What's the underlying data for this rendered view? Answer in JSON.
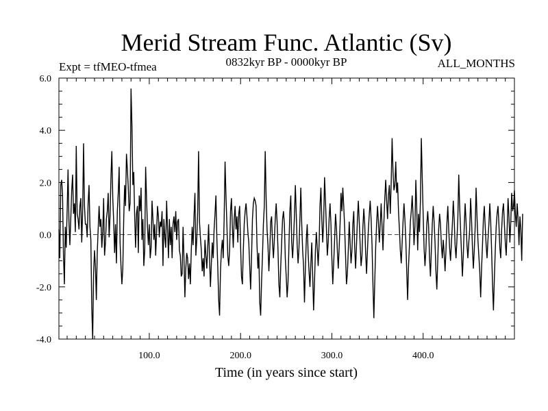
{
  "chart_data": {
    "type": "line",
    "title": "Merid Stream Func. Atlantic (Sv)",
    "subtitle_left": "Expt = tfMEO-tfmea",
    "subtitle_center": "0832kyr BP - 0000kyr BP",
    "subtitle_right": "ALL_MONTHS",
    "xlabel": "Time (in years since start)",
    "ylabel": "",
    "xlim": [
      1,
      500
    ],
    "ylim": [
      -4.0,
      6.0
    ],
    "xticks": [
      100,
      200,
      300,
      400
    ],
    "xtick_labels": [
      "100.0",
      "200.0",
      "300.0",
      "400.0"
    ],
    "yticks": [
      -4,
      -2,
      0,
      2,
      4,
      6
    ],
    "ytick_labels": [
      "-4.0",
      "-2.0",
      "0.0",
      "2.0",
      "4.0",
      "6.0"
    ],
    "reference_line": 0,
    "series": [
      {
        "name": "tfMEO-tfmea",
        "x_start": 1,
        "x_step": 1,
        "values": [
          0.2,
          -0.9,
          1.9,
          2.1,
          1.5,
          -0.8,
          -1.9,
          0.3,
          -0.5,
          0.9,
          2.5,
          0.5,
          -0.4,
          0.6,
          1.7,
          2.3,
          0.8,
          1.2,
          0.1,
          3.4,
          0.8,
          0.6,
          0.2,
          1.1,
          1.4,
          -0.3,
          0.9,
          3.5,
          1.1,
          0.4,
          0.4,
          -0.1,
          1.2,
          1.9,
          0.3,
          -0.2,
          -2.8,
          -4.0,
          -1.5,
          -0.6,
          -1.2,
          -2.5,
          -0.7,
          0.2,
          1.1,
          0.3,
          0.6,
          -0.5,
          0.1,
          1.4,
          -0.8,
          -0.3,
          0.6,
          0.9,
          1.6,
          -0.1,
          0.7,
          2.2,
          3.2,
          1.4,
          0.5,
          -0.7,
          0.4,
          -1.1,
          0.9,
          1.6,
          2.6,
          -0.3,
          -1.2,
          -1.9,
          -1.3,
          0.6,
          1.9,
          1.1,
          3.1,
          2.5,
          1.8,
          0.9,
          1.2,
          5.6,
          4.2,
          1.9,
          2.4,
          0.7,
          -0.5,
          0.8,
          1.1,
          -0.7,
          1.5,
          0.9,
          1.8,
          -0.2,
          0.6,
          -1.2,
          -0.6,
          2.6,
          1.4,
          0.3,
          -0.4,
          0.4,
          -0.9,
          -0.5,
          1.3,
          0.6,
          -0.2,
          0.4,
          -0.8,
          0.1,
          1.1,
          0.7,
          -0.1,
          0.5,
          0.3,
          0.9,
          -1.2,
          0.6,
          -0.1,
          -0.5,
          1.3,
          0.2,
          -0.9,
          0.6,
          -0.4,
          0.3,
          -0.9,
          0.4,
          0.7,
          0.1,
          0.9,
          -0.2,
          0.5,
          0.6,
          -0.6,
          -0.8,
          -1.6,
          -1.5,
          0.3,
          -0.9,
          -2.4,
          -1.3,
          -0.7,
          -0.9,
          -1.7,
          -1.1,
          -1.9,
          -0.6,
          0.3,
          -0.4,
          0.7,
          1.6,
          -0.8,
          -0.2,
          0.9,
          3.2,
          0.5,
          -0.1,
          -0.6,
          -1.4,
          -0.9,
          -1.6,
          -0.2,
          -0.8,
          -1.3,
          -0.5,
          0.4,
          -0.9,
          -2.0,
          -1.1,
          -0.3,
          -0.9,
          0.2,
          0.8,
          1.5,
          -0.1,
          -1.2,
          -2.5,
          -3.1,
          -1.4,
          -0.6,
          -0.2,
          -0.9,
          0.6,
          2.8,
          1.5,
          0.4,
          -0.8,
          -1.2,
          -0.6,
          0.9,
          1.4,
          0.3,
          -0.5,
          0.6,
          1.1,
          0.2,
          0.7,
          -0.3,
          0.8,
          1.1,
          -0.4,
          -1.6,
          -1.9,
          -0.6,
          0.4,
          0.9,
          1.2,
          0.7,
          0.1,
          -0.3,
          -1.2,
          -2.1,
          -0.9,
          0.6,
          1.2,
          1.4,
          1.3,
          1.1,
          -0.4,
          -1.3,
          -0.7,
          -2.6,
          -3.1,
          -1.8,
          -0.8,
          0.4,
          1.1,
          3.2,
          1.4,
          0.2,
          -0.4,
          -1.4,
          -0.6,
          0.5,
          0.7,
          -0.3,
          -0.9,
          -0.2,
          0.6,
          1.2,
          0.5,
          -0.6,
          -1.9,
          -2.4,
          -1.2,
          -0.3,
          0.6,
          0.9,
          0.4,
          -0.9,
          -1.6,
          -2.4,
          -1.8,
          -0.4,
          0.9,
          1.5,
          -0.3,
          -0.9,
          -0.2,
          0.7,
          1.9,
          0.8,
          -0.4,
          -1.1,
          -0.5,
          0.6,
          1.8,
          0.4,
          -0.6,
          -1.2,
          -2.6,
          -1.3,
          -0.2,
          0.4,
          -0.7,
          -1.4,
          -2.0,
          -1.1,
          -0.3,
          -1.6,
          -2.9,
          -1.8,
          -0.6,
          0.1,
          -0.5,
          -1.2,
          -0.4,
          1.1,
          1.8,
          0.6,
          -0.3,
          0.5,
          2.2,
          1.3,
          0.3,
          -0.8,
          -0.3,
          0.6,
          1.2,
          0.4,
          -0.9,
          -1.9,
          -1.1,
          -0.2,
          0.8,
          0.3,
          -0.6,
          -1.3,
          -0.5,
          0.4,
          1.6,
          0.9,
          1.8,
          1.1,
          0.3,
          -0.8,
          -1.9,
          -1.5,
          -0.6,
          0.5,
          -0.3,
          -1.1,
          -0.6,
          0.4,
          0.9,
          -0.5,
          -1.3,
          -0.4,
          0.6,
          1.3,
          0.5,
          -0.4,
          -1.2,
          -0.8,
          0.3,
          1.0,
          0.4,
          -0.7,
          -1.5,
          -0.6,
          0.2,
          0.8,
          1.3,
          0.6,
          -0.4,
          -1.9,
          -3.2,
          -1.8,
          -0.5,
          0.4,
          1.1,
          0.5,
          -0.3,
          0.4,
          1.2,
          0.3,
          -0.6,
          0.5,
          1.4,
          2.1,
          1.3,
          0.6,
          1.5,
          1.9,
          0.8,
          2.0,
          3.7,
          2.4,
          1.7,
          1.9,
          2.8,
          1.6,
          2.0,
          0.9,
          0.2,
          -0.6,
          -1.1,
          -0.3,
          0.5,
          1.2,
          0.6,
          -0.2,
          -1.4,
          -2.5,
          -1.2,
          -0.4,
          0.5,
          0.9,
          1.5,
          0.7,
          -0.4,
          0.3,
          2.1,
          1.0,
          -0.6,
          0.8,
          0.1,
          1.3,
          3.7,
          2.2,
          0.8,
          -0.5,
          -1.2,
          -0.6,
          0.4,
          0.9,
          0.3,
          -0.9,
          -1.6,
          -0.6,
          0.4,
          1.1,
          0.5,
          -0.3,
          -1.4,
          -2.1,
          -1.0,
          0.2,
          0.8,
          0.4,
          -0.4,
          -0.9,
          -0.2,
          -0.7,
          -1.4,
          -0.6,
          0.4,
          1.1,
          0.2,
          -0.5,
          -1.0,
          -0.3,
          0.4,
          1.3,
          0.6,
          -0.4,
          -0.9,
          -0.2,
          0.6,
          2.3,
          1.1,
          0.2,
          -0.7,
          -1.6,
          -0.8,
          0.3,
          1.2,
          0.5,
          -0.4,
          -0.9,
          -0.3,
          0.2,
          1.4,
          0.6,
          -0.5,
          -1.3,
          -0.6,
          0.3,
          1.8,
          0.7,
          -0.2,
          -0.8,
          -1.4,
          -2.4,
          -1.3,
          -0.4,
          0.6,
          1.1,
          0.3,
          -0.4,
          -0.9,
          -0.2,
          0.4,
          1.2,
          0.5,
          -0.6,
          -1.9,
          -2.9,
          -1.7,
          -0.6,
          0.3,
          0.8,
          1.1,
          0.4,
          -0.5,
          -0.9,
          0.2,
          0.9,
          1.2,
          0.4,
          -0.3,
          -0.8,
          0.2,
          1.4,
          0.7,
          -0.3,
          0.5,
          1.6,
          0.9,
          1.1,
          1.7,
          0.8,
          0.3,
          1.2,
          0.6,
          -0.4,
          0.7,
          0.2,
          -1.0,
          0.8
        ]
      }
    ]
  }
}
